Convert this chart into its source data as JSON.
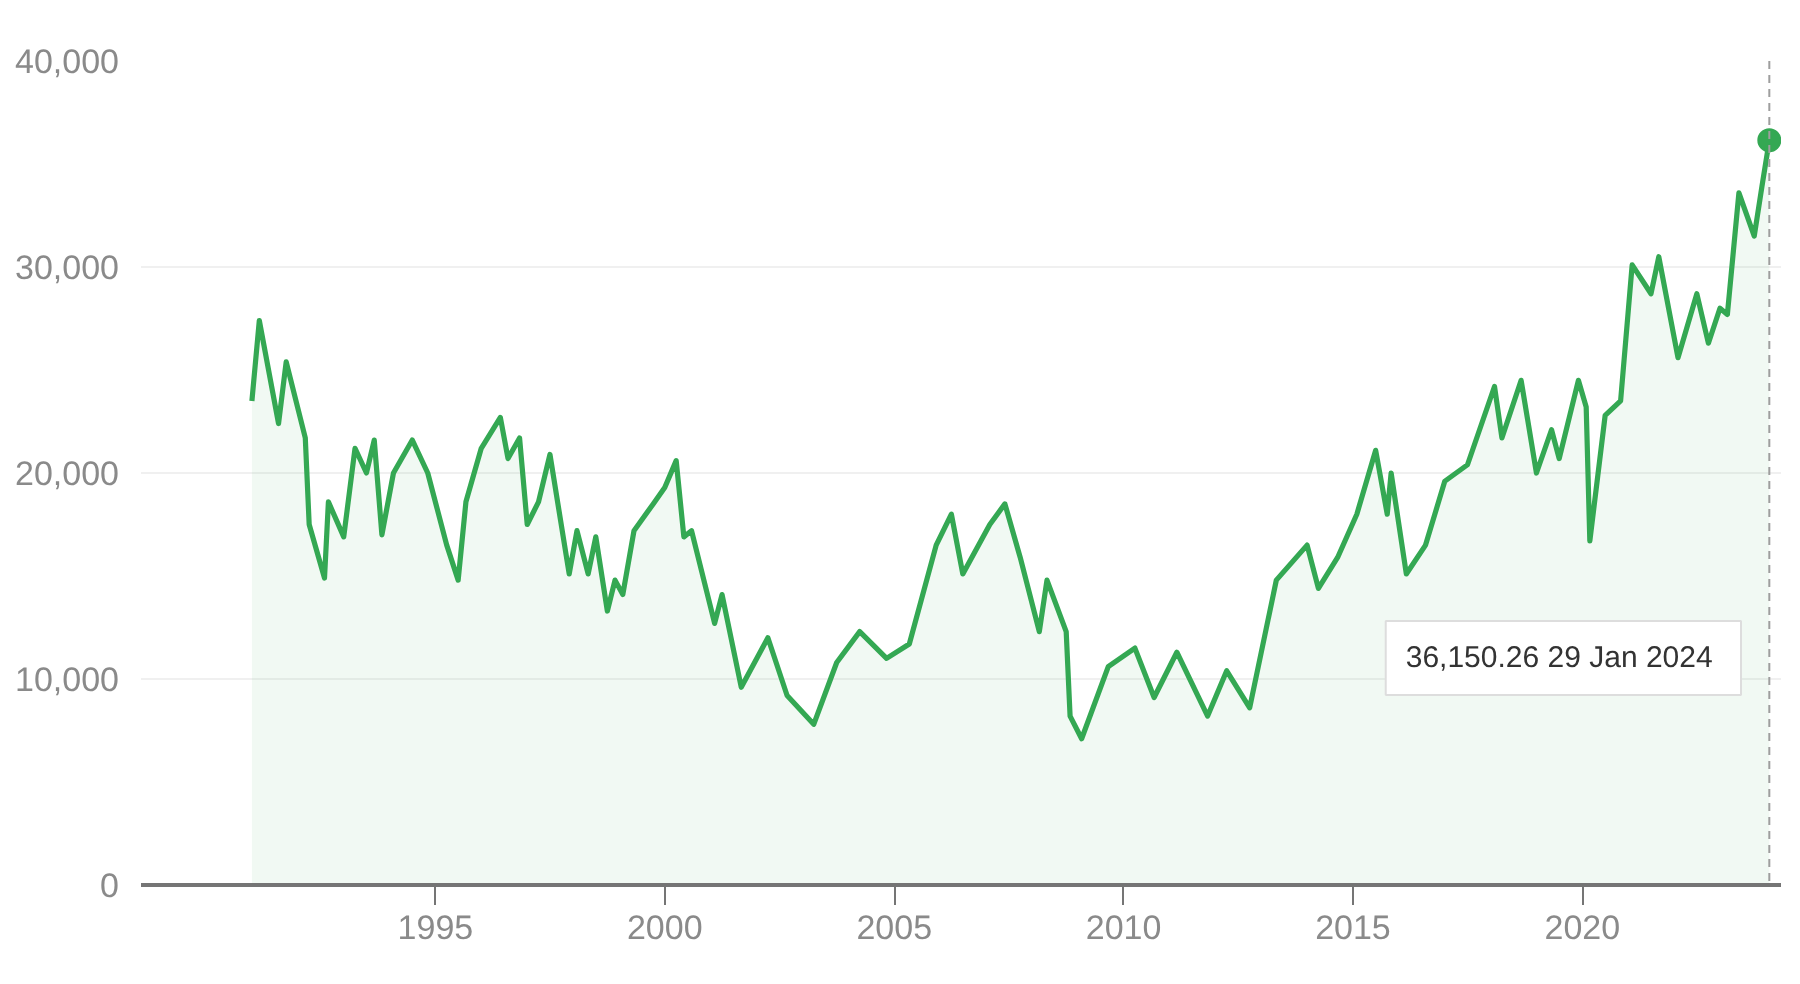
{
  "chart_data": {
    "type": "area",
    "x": [
      "1991-01",
      "1991-03",
      "1991-08",
      "1991-10",
      "1992-03",
      "1992-04",
      "1992-08",
      "1992-09",
      "1993-01",
      "1993-04",
      "1993-07",
      "1993-09",
      "1993-11",
      "1994-02",
      "1994-07",
      "1994-11",
      "1995-04",
      "1995-07",
      "1995-09",
      "1996-01",
      "1996-06",
      "1996-08",
      "1996-11",
      "1997-01",
      "1997-04",
      "1997-07",
      "1997-12",
      "1998-02",
      "1998-05",
      "1998-07",
      "1998-10",
      "1998-12",
      "1999-02",
      "1999-05",
      "1999-10",
      "2000-01",
      "2000-04",
      "2000-06",
      "2000-08",
      "2001-02",
      "2001-04",
      "2001-09",
      "2002-04",
      "2002-09",
      "2003-04",
      "2003-10",
      "2004-04",
      "2004-11",
      "2005-05",
      "2005-12",
      "2006-04",
      "2006-07",
      "2007-02",
      "2007-06",
      "2007-10",
      "2008-03",
      "2008-05",
      "2008-10",
      "2008-11",
      "2009-02",
      "2009-09",
      "2010-04",
      "2010-09",
      "2011-03",
      "2011-11",
      "2012-04",
      "2012-10",
      "2013-05",
      "2014-01",
      "2014-04",
      "2014-09",
      "2015-02",
      "2015-07",
      "2015-10",
      "2015-11",
      "2016-03",
      "2016-08",
      "2017-01",
      "2017-07",
      "2018-02",
      "2018-04",
      "2018-09",
      "2019-01",
      "2019-05",
      "2019-07",
      "2019-12",
      "2020-02",
      "2020-03",
      "2020-07",
      "2020-11",
      "2021-02",
      "2021-07",
      "2021-09",
      "2022-02",
      "2022-07",
      "2022-10",
      "2023-01",
      "2023-03",
      "2023-06",
      "2023-10",
      "2023-12",
      "2024-01-29"
    ],
    "series": [
      {
        "color": "#34a853",
        "values": [
          23500,
          27400,
          22400,
          25400,
          21700,
          17500,
          14900,
          18600,
          16900,
          21200,
          20000,
          21600,
          17000,
          20000,
          21600,
          20000,
          16500,
          14800,
          18600,
          21200,
          22700,
          20700,
          21700,
          17500,
          18600,
          20900,
          15100,
          17200,
          15100,
          16900,
          13300,
          14800,
          14100,
          17200,
          18500,
          19300,
          20600,
          16900,
          17200,
          12700,
          14100,
          9600,
          12000,
          9200,
          7800,
          10800,
          12300,
          11000,
          11700,
          16500,
          18000,
          15100,
          17500,
          18500,
          15900,
          12300,
          14800,
          12300,
          8200,
          7100,
          10600,
          11500,
          9100,
          11300,
          8200,
          10400,
          8600,
          14800,
          16500,
          14400,
          15900,
          18000,
          21100,
          18000,
          20000,
          15100,
          16500,
          19600,
          20400,
          24200,
          21700,
          24500,
          20000,
          22100,
          20700,
          24500,
          23200,
          16700,
          22800,
          23500,
          30100,
          28700,
          30500,
          25600,
          28700,
          26300,
          28000,
          27700,
          33600,
          31500,
          33900,
          36150.26
        ]
      }
    ],
    "xlim": [
      "1988-08",
      "2024-05"
    ],
    "xticks": [
      {
        "value": "1995",
        "label": "1995"
      },
      {
        "value": "2000",
        "label": "2000"
      },
      {
        "value": "2005",
        "label": "2005"
      },
      {
        "value": "2010",
        "label": "2010"
      },
      {
        "value": "2015",
        "label": "2015"
      },
      {
        "value": "2020",
        "label": "2020"
      }
    ],
    "ylim": [
      0,
      40000
    ],
    "yticks": [
      {
        "value": 0,
        "label": "0"
      },
      {
        "value": 10000,
        "label": "10,000"
      },
      {
        "value": 20000,
        "label": "20,000"
      },
      {
        "value": 30000,
        "label": "30,000"
      },
      {
        "value": 40000,
        "label": "40,000"
      }
    ],
    "grid": "y",
    "ref_lines": [
      {
        "axis": "x",
        "value": "2024-01-29",
        "color": "#9e9e9e",
        "line_style": "dashed"
      }
    ],
    "annotations": [
      "36,150.26  29 Jan 2024"
    ]
  }
}
